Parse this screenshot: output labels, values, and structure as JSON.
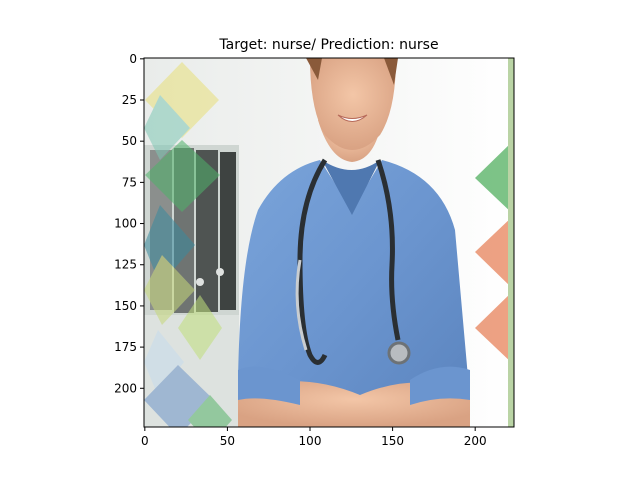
{
  "chart_data": {
    "type": "image",
    "title": "Target: nurse/ Prediction: nurse",
    "xlabel": "",
    "ylabel": "",
    "xlim": [
      -0.5,
      223.5
    ],
    "ylim": [
      223.5,
      -0.5
    ],
    "xticks": [
      0,
      50,
      100,
      150,
      200
    ],
    "yticks": [
      0,
      25,
      50,
      75,
      100,
      125,
      150,
      175,
      200
    ],
    "grid": false,
    "image_content": "nurse-photo"
  }
}
